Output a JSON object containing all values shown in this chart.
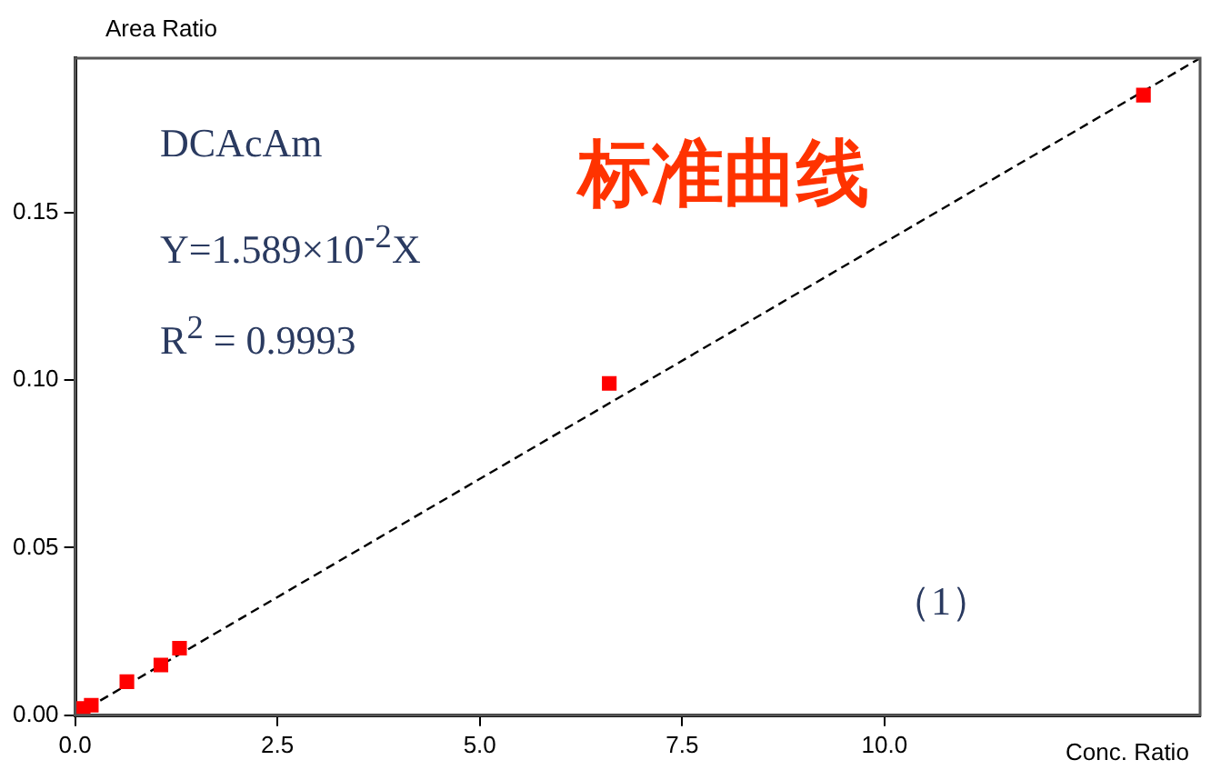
{
  "chart_data": {
    "type": "scatter",
    "title": "标准曲线",
    "xlabel": "Conc. Ratio",
    "ylabel": "Area Ratio",
    "annotations": [
      "DCAcAm",
      "Y=1.589×10$^{-2}$X",
      "R$^{2}$ = 0.9993",
      "（1）"
    ],
    "xlim": [
      0,
      13.9
    ],
    "ylim": [
      0,
      0.196
    ],
    "xticks": [
      {
        "value": 0,
        "label": "0.0"
      },
      2.5,
      {
        "value": 5,
        "label": "5.0"
      },
      7.5,
      {
        "value": 10,
        "label": "10.0"
      }
    ],
    "yticks": [
      {
        "value": 0,
        "label": "0.00"
      },
      0.05,
      {
        "value": 0.1,
        "label": "0.10"
      },
      0.15
    ],
    "grid": false,
    "legend": false,
    "marker": "square",
    "series": [
      {
        "color": "#ff0000",
        "x": [
          0.1,
          0.2,
          0.64,
          1.06,
          1.29,
          6.6,
          13.2
        ],
        "values": [
          0.002,
          0.003,
          0.01,
          0.015,
          0.02,
          0.099,
          0.185
        ]
      },
      {
        "type": "line",
        "color": "#000000",
        "line_style": "dashed",
        "marker": "none",
        "x": [
          0,
          13.9
        ],
        "values": [
          0,
          0.196
        ]
      }
    ]
  }
}
